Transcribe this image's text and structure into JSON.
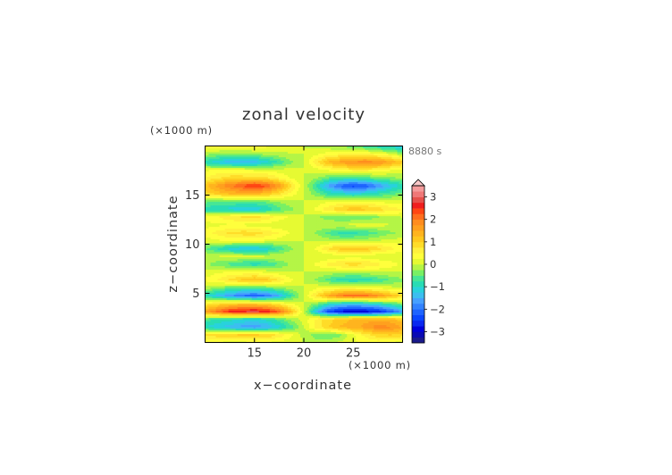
{
  "chart_data": {
    "type": "heatmap",
    "title": "zonal velocity",
    "xlabel": "x−coordinate",
    "ylabel": "z−coordinate",
    "x_unit": "(×1000 m)",
    "y_unit": "(×1000 m)",
    "time_label": "8880 s",
    "xlim": [
      10,
      30
    ],
    "ylim": [
      0,
      20
    ],
    "x_ticks": [
      15,
      20,
      25
    ],
    "y_ticks": [
      5,
      10,
      15
    ],
    "colorbar": {
      "levels": [
        -3.5,
        -3.25,
        -3,
        -2.75,
        -2.5,
        -2.25,
        -2,
        -1.75,
        -1.5,
        -1.25,
        -1,
        -0.75,
        -0.5,
        -0.25,
        0,
        0.25,
        0.5,
        0.75,
        1,
        1.25,
        1.5,
        1.75,
        2,
        2.25,
        2.5,
        2.75,
        3,
        3.25,
        3.5
      ],
      "tick_labels": [
        "−3",
        "−2",
        "−1",
        "0",
        "1",
        "2",
        "3"
      ],
      "tick_values": [
        -3,
        -2,
        -1,
        0,
        1,
        2,
        3
      ],
      "extend": "max",
      "colors": [
        "#1a1a8c",
        "#0a0ab4",
        "#0000dc",
        "#0a28f0",
        "#0a46ff",
        "#1e64ff",
        "#3282ff",
        "#46a0ff",
        "#3cbef0",
        "#28d2dc",
        "#28dcb4",
        "#46e696",
        "#78f064",
        "#b4f546",
        "#e6fa32",
        "#ffff3c",
        "#fff03c",
        "#ffdc28",
        "#ffc81e",
        "#ffb41e",
        "#ffa01e",
        "#ff8c1e",
        "#ff6e1e",
        "#ff4614",
        "#f01e1e",
        "#e6504b",
        "#f07878",
        "#f59b9b"
      ]
    },
    "x_grid": [
      10,
      11.25,
      12.5,
      13.75,
      15,
      16.25,
      17.5,
      18.75,
      20,
      21.25,
      22.5,
      23.75,
      25,
      26.25,
      27.5,
      28.75,
      30
    ],
    "z_grid": [
      0,
      0.8,
      1.6,
      2.4,
      3.2,
      4,
      4.8,
      5.6,
      6.4,
      7.2,
      8,
      8.8,
      9.6,
      10.4,
      11.2,
      12,
      12.8,
      13.6,
      14.4,
      15.2,
      16,
      16.8,
      17.6,
      18.4,
      19.2,
      20
    ],
    "u": [
      [
        0.3,
        0.2,
        0.1,
        0.1,
        0.2,
        0.2,
        0.1,
        0.1,
        0.0,
        -0.1,
        -0.1,
        0.1,
        0.2,
        0.3,
        0.3,
        0.2,
        0.1
      ],
      [
        0.8,
        0.9,
        1.0,
        1.1,
        1.1,
        1.0,
        0.7,
        0.3,
        -0.1,
        -0.4,
        -0.5,
        -0.3,
        0.2,
        0.6,
        0.9,
        1.0,
        0.9
      ],
      [
        -1.0,
        -1.2,
        -1.4,
        -1.6,
        -1.7,
        -1.5,
        -1.1,
        -0.6,
        0.0,
        0.6,
        1.0,
        1.3,
        1.4,
        1.6,
        1.9,
        1.8,
        1.5
      ],
      [
        -0.6,
        -0.8,
        -0.9,
        -1.0,
        -1.1,
        -0.9,
        -0.6,
        -0.2,
        0.1,
        0.6,
        0.9,
        1.1,
        1.3,
        1.4,
        1.4,
        1.3,
        1.1
      ],
      [
        1.6,
        2.1,
        2.6,
        2.8,
        2.9,
        2.7,
        2.2,
        1.2,
        0.0,
        -1.3,
        -2.4,
        -2.8,
        -3.0,
        -2.9,
        -2.7,
        -2.2,
        -1.6
      ],
      [
        0.6,
        0.8,
        1.0,
        1.1,
        1.1,
        0.9,
        0.6,
        0.2,
        0.0,
        -0.3,
        -0.8,
        -1.1,
        -1.2,
        -1.1,
        -0.9,
        -0.6,
        -0.3
      ],
      [
        -0.9,
        -1.3,
        -1.7,
        -2.0,
        -2.2,
        -2.0,
        -1.5,
        -0.7,
        0.0,
        0.8,
        1.5,
        2.0,
        2.2,
        2.1,
        1.8,
        1.3,
        0.9
      ],
      [
        -0.1,
        -0.3,
        -0.5,
        -0.6,
        -0.6,
        -0.5,
        -0.3,
        -0.1,
        0.0,
        0.2,
        0.3,
        0.4,
        0.4,
        0.3,
        0.2,
        0.1,
        0.0
      ],
      [
        0.3,
        0.5,
        0.8,
        1.1,
        1.3,
        1.1,
        0.7,
        0.3,
        0.0,
        -0.3,
        -0.6,
        -0.9,
        -1.0,
        -0.9,
        -0.7,
        -0.5,
        -0.3
      ],
      [
        0.1,
        0.2,
        0.3,
        0.3,
        0.3,
        0.2,
        0.1,
        0.0,
        0.0,
        0.0,
        -0.1,
        -0.1,
        -0.1,
        -0.1,
        0.0,
        0.0,
        0.0
      ],
      [
        -0.2,
        -0.4,
        -0.6,
        -0.8,
        -0.9,
        -0.8,
        -0.5,
        -0.2,
        0.0,
        0.3,
        0.6,
        0.8,
        0.9,
        0.8,
        0.6,
        0.4,
        0.2
      ],
      [
        0.0,
        0.0,
        0.1,
        0.1,
        0.1,
        0.0,
        0.0,
        0.0,
        0.0,
        0.0,
        0.0,
        0.1,
        0.1,
        0.1,
        0.0,
        0.0,
        0.0
      ],
      [
        -0.5,
        -0.8,
        -1.1,
        -1.3,
        -1.3,
        -1.1,
        -0.7,
        -0.3,
        0.0,
        0.3,
        0.8,
        1.1,
        1.2,
        1.1,
        0.9,
        0.6,
        0.4
      ],
      [
        0.1,
        0.2,
        0.3,
        0.3,
        0.3,
        0.2,
        0.1,
        0.0,
        0.0,
        0.0,
        -0.1,
        -0.2,
        -0.2,
        -0.1,
        0.0,
        0.1,
        0.1
      ],
      [
        0.4,
        0.6,
        0.8,
        0.9,
        0.9,
        0.7,
        0.5,
        0.2,
        0.0,
        -0.3,
        -0.6,
        -0.8,
        -0.8,
        -0.7,
        -0.5,
        -0.3,
        -0.2
      ],
      [
        0.1,
        0.2,
        0.2,
        0.2,
        0.1,
        0.1,
        0.0,
        0.0,
        0.0,
        0.0,
        0.0,
        0.0,
        0.1,
        0.1,
        0.1,
        0.0,
        0.0
      ],
      [
        0.4,
        0.5,
        0.7,
        0.8,
        0.9,
        0.7,
        0.4,
        0.2,
        0.0,
        -0.2,
        -0.4,
        -0.5,
        -0.5,
        -0.4,
        -0.3,
        -0.1,
        0.0
      ],
      [
        -0.9,
        -1.0,
        -1.1,
        -1.2,
        -1.2,
        -1.0,
        -0.6,
        -0.3,
        0.0,
        0.3,
        0.7,
        1.0,
        1.2,
        1.1,
        0.9,
        0.7,
        0.5
      ],
      [
        -0.4,
        -0.5,
        -0.5,
        -0.5,
        -0.5,
        -0.4,
        -0.2,
        -0.1,
        0.0,
        0.1,
        0.2,
        0.3,
        0.3,
        0.3,
        0.2,
        0.1,
        0.1
      ],
      [
        0.9,
        1.1,
        1.3,
        1.4,
        1.4,
        1.2,
        0.8,
        0.4,
        0.0,
        -0.4,
        -0.8,
        -1.0,
        -1.1,
        -1.0,
        -0.8,
        -0.6,
        -0.4
      ],
      [
        1.2,
        1.6,
        2.0,
        2.3,
        2.6,
        2.3,
        1.7,
        0.8,
        0.0,
        -0.8,
        -1.6,
        -2.1,
        -2.4,
        -2.2,
        -1.8,
        -1.3,
        -0.9
      ],
      [
        0.5,
        0.7,
        0.9,
        0.9,
        0.9,
        0.8,
        0.5,
        0.2,
        0.0,
        -0.2,
        -0.5,
        -0.7,
        -0.7,
        -0.6,
        -0.4,
        -0.3,
        -0.2
      ],
      [
        0.2,
        0.3,
        0.3,
        0.3,
        0.2,
        0.2,
        0.1,
        0.1,
        0.0,
        0.1,
        0.3,
        0.5,
        0.6,
        0.6,
        0.5,
        0.3,
        0.1
      ],
      [
        -0.9,
        -1.2,
        -1.4,
        -1.5,
        -1.4,
        -1.1,
        -0.7,
        -0.3,
        0.0,
        0.7,
        1.3,
        1.6,
        1.8,
        1.9,
        1.8,
        1.5,
        1.1
      ],
      [
        -0.2,
        -0.3,
        -0.4,
        -0.4,
        -0.3,
        -0.2,
        -0.1,
        0.0,
        0.0,
        0.2,
        0.4,
        0.5,
        0.6,
        0.6,
        0.4,
        0.2,
        -0.2
      ],
      [
        0.3,
        0.4,
        0.5,
        0.5,
        0.4,
        0.3,
        0.2,
        0.1,
        0.0,
        -0.1,
        -0.2,
        -0.3,
        -0.4,
        -0.7,
        -0.9,
        -1.1,
        -1.2
      ]
    ]
  }
}
